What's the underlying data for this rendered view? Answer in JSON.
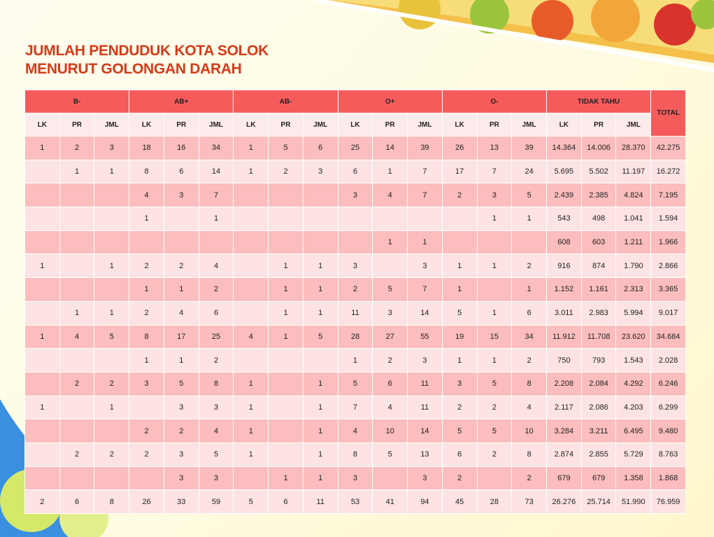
{
  "title": [
    "JUMLAH PENDUDUK KOTA SOLOK",
    "MENURUT GOLONGAN DARAH"
  ],
  "table": {
    "groups": [
      {
        "name": "B-",
        "columns": [
          "LK",
          "PR",
          "JML"
        ]
      },
      {
        "name": "AB+",
        "columns": [
          "LK",
          "PR",
          "JML"
        ]
      },
      {
        "name": "AB-",
        "columns": [
          "LK",
          "PR",
          "JML"
        ]
      },
      {
        "name": "O+",
        "columns": [
          "LK",
          "PR",
          "JML"
        ]
      },
      {
        "name": "O-",
        "columns": [
          "LK",
          "PR",
          "JML"
        ]
      },
      {
        "name": "TIDAK TAHU",
        "columns": [
          "LK",
          "PR",
          "JML"
        ]
      }
    ],
    "total_header": "TOTAL",
    "rows": [
      [
        "1",
        "2",
        "3",
        "18",
        "16",
        "34",
        "1",
        "5",
        "6",
        "25",
        "14",
        "39",
        "26",
        "13",
        "39",
        "14.364",
        "14.006",
        "28.370",
        "42.275"
      ],
      [
        null,
        "1",
        "1",
        "8",
        "6",
        "14",
        "1",
        "2",
        "3",
        "6",
        "1",
        "7",
        "17",
        "7",
        "24",
        "5.695",
        "5.502",
        "11.197",
        "16.272"
      ],
      [
        null,
        null,
        null,
        "4",
        "3",
        "7",
        null,
        null,
        null,
        "3",
        "4",
        "7",
        "2",
        "3",
        "5",
        "2.439",
        "2.385",
        "4.824",
        "7.195"
      ],
      [
        null,
        null,
        null,
        "1",
        null,
        "1",
        null,
        null,
        null,
        null,
        null,
        null,
        null,
        "1",
        "1",
        "543",
        "498",
        "1.041",
        "1.594"
      ],
      [
        null,
        null,
        null,
        null,
        null,
        null,
        null,
        null,
        null,
        null,
        "1",
        "1",
        null,
        null,
        null,
        "608",
        "603",
        "1.211",
        "1.966"
      ],
      [
        "1",
        null,
        "1",
        "2",
        "2",
        "4",
        null,
        "1",
        "1",
        "3",
        null,
        "3",
        "1",
        "1",
        "2",
        "916",
        "874",
        "1.790",
        "2.866"
      ],
      [
        null,
        null,
        null,
        "1",
        "1",
        "2",
        null,
        "1",
        "1",
        "2",
        "5",
        "7",
        "1",
        null,
        "1",
        "1.152",
        "1.161",
        "2.313",
        "3.365"
      ],
      [
        null,
        "1",
        "1",
        "2",
        "4",
        "6",
        null,
        "1",
        "1",
        "11",
        "3",
        "14",
        "5",
        "1",
        "6",
        "3.011",
        "2.983",
        "5.994",
        "9.017"
      ],
      [
        "1",
        "4",
        "5",
        "8",
        "17",
        "25",
        "4",
        "1",
        "5",
        "28",
        "27",
        "55",
        "19",
        "15",
        "34",
        "11.912",
        "11.708",
        "23.620",
        "34.684"
      ],
      [
        null,
        null,
        null,
        "1",
        "1",
        "2",
        null,
        null,
        null,
        "1",
        "2",
        "3",
        "1",
        "1",
        "2",
        "750",
        "793",
        "1.543",
        "2.028"
      ],
      [
        null,
        "2",
        "2",
        "3",
        "5",
        "8",
        "1",
        null,
        "1",
        "5",
        "6",
        "11",
        "3",
        "5",
        "8",
        "2.208",
        "2.084",
        "4.292",
        "6.246"
      ],
      [
        "1",
        null,
        "1",
        null,
        "3",
        "3",
        "1",
        null,
        "1",
        "7",
        "4",
        "11",
        "2",
        "2",
        "4",
        "2.117",
        "2.086",
        "4.203",
        "6.299"
      ],
      [
        null,
        null,
        null,
        "2",
        "2",
        "4",
        "1",
        null,
        "1",
        "4",
        "10",
        "14",
        "5",
        "5",
        "10",
        "3.284",
        "3.211",
        "6.495",
        "9.480"
      ],
      [
        null,
        "2",
        "2",
        "2",
        "3",
        "5",
        "1",
        null,
        "1",
        "8",
        "5",
        "13",
        "6",
        "2",
        "8",
        "2.874",
        "2.855",
        "5.729",
        "8.763"
      ],
      [
        null,
        null,
        null,
        null,
        "3",
        "3",
        null,
        "1",
        "1",
        "3",
        null,
        "3",
        "2",
        null,
        "2",
        "679",
        "679",
        "1.358",
        "1.868"
      ],
      [
        "2",
        "6",
        "8",
        "26",
        "33",
        "59",
        "5",
        "6",
        "11",
        "53",
        "41",
        "94",
        "45",
        "28",
        "73",
        "26.276",
        "25.714",
        "51.990",
        "76.959"
      ]
    ]
  }
}
